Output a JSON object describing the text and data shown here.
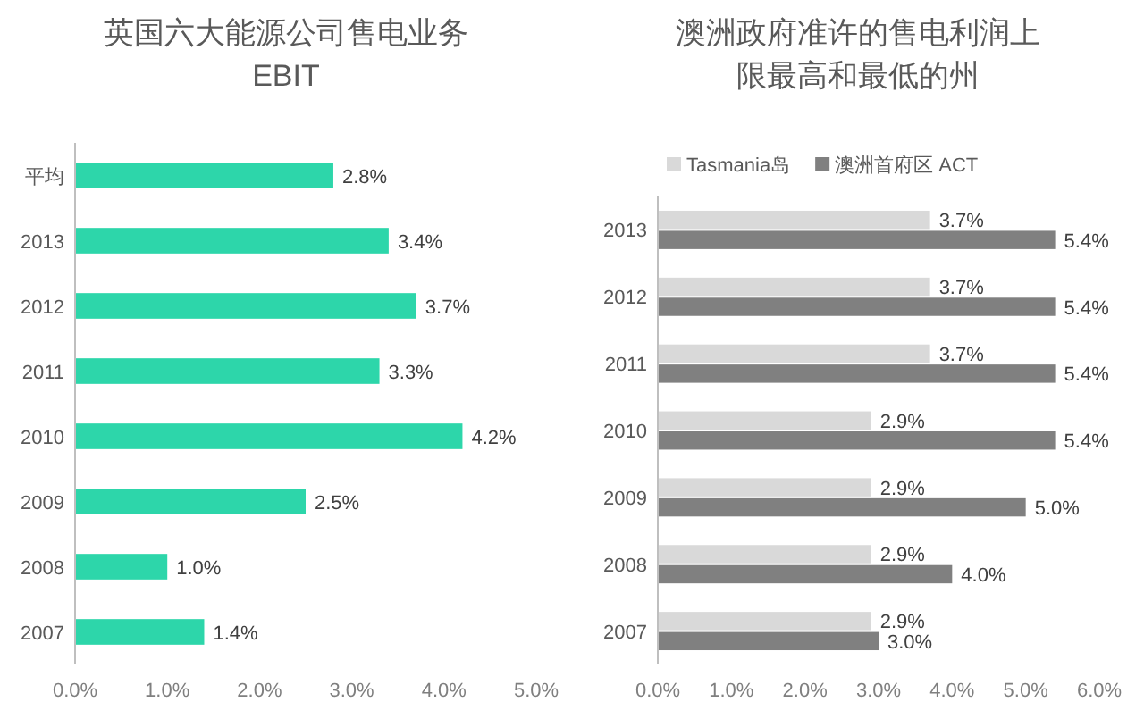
{
  "chart_data": [
    {
      "type": "bar",
      "orientation": "horizontal",
      "title": "英国六大能源公司售电业务EBIT",
      "categories": [
        "平均",
        "2013",
        "2012",
        "2011",
        "2010",
        "2009",
        "2008",
        "2007"
      ],
      "series": [
        {
          "color": "#2dd6aa",
          "values": [
            2.8,
            3.4,
            3.7,
            3.3,
            4.2,
            2.5,
            1.0,
            1.4
          ],
          "value_labels": [
            "2.8%",
            "3.4%",
            "3.7%",
            "3.3%",
            "4.2%",
            "2.5%",
            "1.0%",
            "1.4%"
          ]
        }
      ],
      "xlim": [
        0,
        5
      ],
      "xticks": [
        {
          "value": 0,
          "label": "0.0%"
        },
        {
          "value": 1,
          "label": "1.0%"
        },
        {
          "value": 2,
          "label": "2.0%"
        },
        {
          "value": 3,
          "label": "3.0%"
        },
        {
          "value": 4,
          "label": "4.0%"
        },
        {
          "value": 5,
          "label": "5.0%"
        }
      ],
      "legend": false,
      "grid": false
    },
    {
      "type": "bar",
      "orientation": "horizontal",
      "title": "澳洲政府准许的售电利润上限最高和最低的州",
      "categories": [
        "2013",
        "2012",
        "2011",
        "2010",
        "2009",
        "2008",
        "2007"
      ],
      "series": [
        {
          "name": "Tasmania岛",
          "color": "#d9d9d9",
          "values": [
            3.7,
            3.7,
            3.7,
            2.9,
            2.9,
            2.9,
            2.9
          ],
          "value_labels": [
            "3.7%",
            "3.7%",
            "3.7%",
            "2.9%",
            "2.9%",
            "2.9%",
            "2.9%"
          ]
        },
        {
          "name": "澳洲首府区 ACT",
          "color": "#808080",
          "values": [
            5.4,
            5.4,
            5.4,
            5.4,
            5.0,
            4.0,
            3.0
          ],
          "value_labels": [
            "5.4%",
            "5.4%",
            "5.4%",
            "5.4%",
            "5.0%",
            "4.0%",
            "3.0%"
          ]
        }
      ],
      "xlim": [
        0,
        6
      ],
      "xticks": [
        {
          "value": 0,
          "label": "0.0%"
        },
        {
          "value": 1,
          "label": "1.0%"
        },
        {
          "value": 2,
          "label": "2.0%"
        },
        {
          "value": 3,
          "label": "3.0%"
        },
        {
          "value": 4,
          "label": "4.0%"
        },
        {
          "value": 5,
          "label": "5.0%"
        },
        {
          "value": 6,
          "label": "6.0%"
        }
      ],
      "legend": "top",
      "grid": false
    }
  ]
}
